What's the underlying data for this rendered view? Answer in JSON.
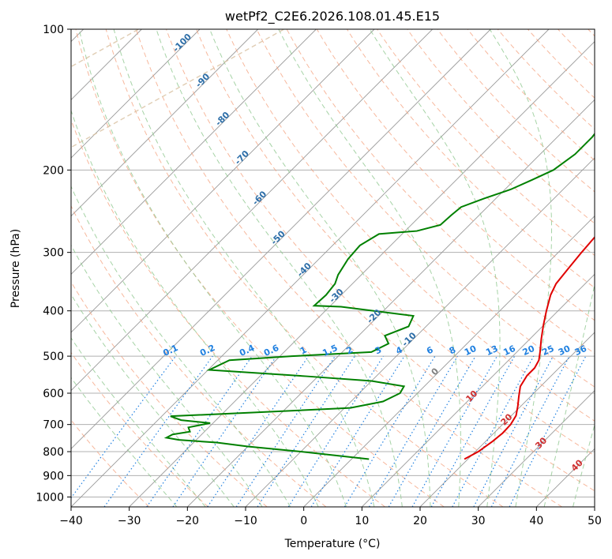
{
  "chart_data": {
    "type": "line",
    "title": "wetPf2_C2E6.2026.108.01.45.E15",
    "xlabel": "Temperature (°C)",
    "ylabel": "Pressure (hPa)",
    "xlim": [
      -40,
      50
    ],
    "ylim_hpa": [
      1050,
      100
    ],
    "x_ticks": [
      "−40",
      "−30",
      "−20",
      "−10",
      "0",
      "10",
      "20",
      "30",
      "40",
      "50"
    ],
    "x_tick_values": [
      -40,
      -30,
      -20,
      -10,
      0,
      10,
      20,
      30,
      40,
      50
    ],
    "y_ticks": [
      "100",
      "200",
      "300",
      "400",
      "500",
      "600",
      "700",
      "800",
      "900",
      "1000"
    ],
    "y_tick_values": [
      100,
      200,
      300,
      400,
      500,
      600,
      700,
      800,
      900,
      1000
    ],
    "grid": true,
    "colors": {
      "temperature": "#e00000",
      "dewpoint": "#008000",
      "isotherm_grid": "#999999",
      "dry_adiabat": "#f4a07c",
      "moist_adiabat": "#90c890",
      "mixing_ratio": "#2080e0",
      "isotherm_label": "#2d6ea8",
      "dry_adiabat_label": "#d03030",
      "zero_label": "#808080",
      "decorative_curve": "#d8c0a0"
    },
    "series": [
      {
        "name": "temperature",
        "points": [
          [
            19.4,
            830
          ],
          [
            20.5,
            800
          ],
          [
            21.2,
            760
          ],
          [
            21.5,
            730
          ],
          [
            21.4,
            700
          ],
          [
            20.8,
            670
          ],
          [
            19.5,
            640
          ],
          [
            18.0,
            610
          ],
          [
            16.5,
            580
          ],
          [
            15.8,
            550
          ],
          [
            15.8,
            530
          ],
          [
            15.2,
            510
          ],
          [
            14.0,
            490
          ],
          [
            12.0,
            460
          ],
          [
            10.0,
            430
          ],
          [
            8.0,
            400
          ],
          [
            6.0,
            370
          ],
          [
            5.0,
            350
          ],
          [
            4.5,
            325
          ],
          [
            4.0,
            300
          ],
          [
            3.5,
            270
          ],
          [
            3.0,
            250
          ],
          [
            3.0,
            230
          ],
          [
            2.5,
            210
          ],
          [
            2.0,
            190
          ],
          [
            1.7,
            175
          ],
          [
            2.0,
            160
          ],
          [
            2.6,
            150
          ],
          [
            3.3,
            140
          ],
          [
            4.0,
            130
          ],
          [
            4.3,
            120
          ],
          [
            5.0,
            113
          ],
          [
            6.5,
            107
          ],
          [
            8.3,
            102
          ],
          [
            9.0,
            100
          ]
        ]
      },
      {
        "name": "dewpoint",
        "points": [
          [
            3.0,
            830
          ],
          [
            -10.0,
            800
          ],
          [
            -20.0,
            780
          ],
          [
            -26.0,
            765
          ],
          [
            -33.0,
            755
          ],
          [
            -35.5,
            747
          ],
          [
            -35.0,
            735
          ],
          [
            -32.5,
            725
          ],
          [
            -33.5,
            710
          ],
          [
            -30.5,
            695
          ],
          [
            -36.0,
            685
          ],
          [
            -38.5,
            672
          ],
          [
            -25.0,
            660
          ],
          [
            -9.0,
            645
          ],
          [
            -4.5,
            625
          ],
          [
            -3.0,
            600
          ],
          [
            -3.5,
            580
          ],
          [
            -10.0,
            565
          ],
          [
            -22.0,
            552
          ],
          [
            -39.8,
            535
          ],
          [
            -38.0,
            510
          ],
          [
            -28.0,
            500
          ],
          [
            -15.0,
            490
          ],
          [
            -13.5,
            470
          ],
          [
            -15.5,
            452
          ],
          [
            -13.0,
            432
          ],
          [
            -14.0,
            410
          ],
          [
            -28.0,
            392
          ],
          [
            -32.8,
            390
          ],
          [
            -32.6,
            370
          ],
          [
            -33.0,
            350
          ],
          [
            -34.0,
            335
          ],
          [
            -35.0,
            310
          ],
          [
            -35.3,
            290
          ],
          [
            -34.0,
            274
          ],
          [
            -28.0,
            270
          ],
          [
            -25.0,
            262
          ],
          [
            -24.8,
            250
          ],
          [
            -24.5,
            240
          ],
          [
            -22.0,
            230
          ],
          [
            -19.0,
            220
          ],
          [
            -17.0,
            210
          ],
          [
            -15.0,
            200
          ],
          [
            -14.0,
            185
          ],
          [
            -14.0,
            170
          ],
          [
            -14.5,
            160
          ],
          [
            -14.0,
            150
          ],
          [
            -13.0,
            143
          ],
          [
            -11.0,
            138
          ],
          [
            -8.5,
            130
          ],
          [
            -6.5,
            125
          ],
          [
            -5.0,
            120
          ],
          [
            -3.5,
            113
          ],
          [
            -2.0,
            107
          ],
          [
            -1.0,
            100
          ]
        ]
      }
    ],
    "isotherm_labels": [
      {
        "text": "-100",
        "t": -100
      },
      {
        "text": "-90",
        "t": -90
      },
      {
        "text": "-80",
        "t": -80
      },
      {
        "text": "-70",
        "t": -70
      },
      {
        "text": "-60",
        "t": -60
      },
      {
        "text": "-50",
        "t": -50
      },
      {
        "text": "-40",
        "t": -40
      },
      {
        "text": "-30",
        "t": -30
      },
      {
        "text": "-20",
        "t": -20
      },
      {
        "text": "-10",
        "t": -10
      },
      {
        "text": "0",
        "t": 0
      }
    ],
    "mixing_ratio_labels": [
      "0.1",
      "0.2",
      "0.4",
      "0.6",
      "1",
      "1.5",
      "2",
      "3",
      "4",
      "6",
      "8",
      "10",
      "13",
      "16",
      "20",
      "25",
      "30",
      "36"
    ],
    "dry_adiabat_labels": [
      {
        "text": "10",
        "t": 10
      },
      {
        "text": "20",
        "t": 20
      },
      {
        "text": "30",
        "t": 30
      },
      {
        "text": "40",
        "t": 40
      }
    ]
  }
}
